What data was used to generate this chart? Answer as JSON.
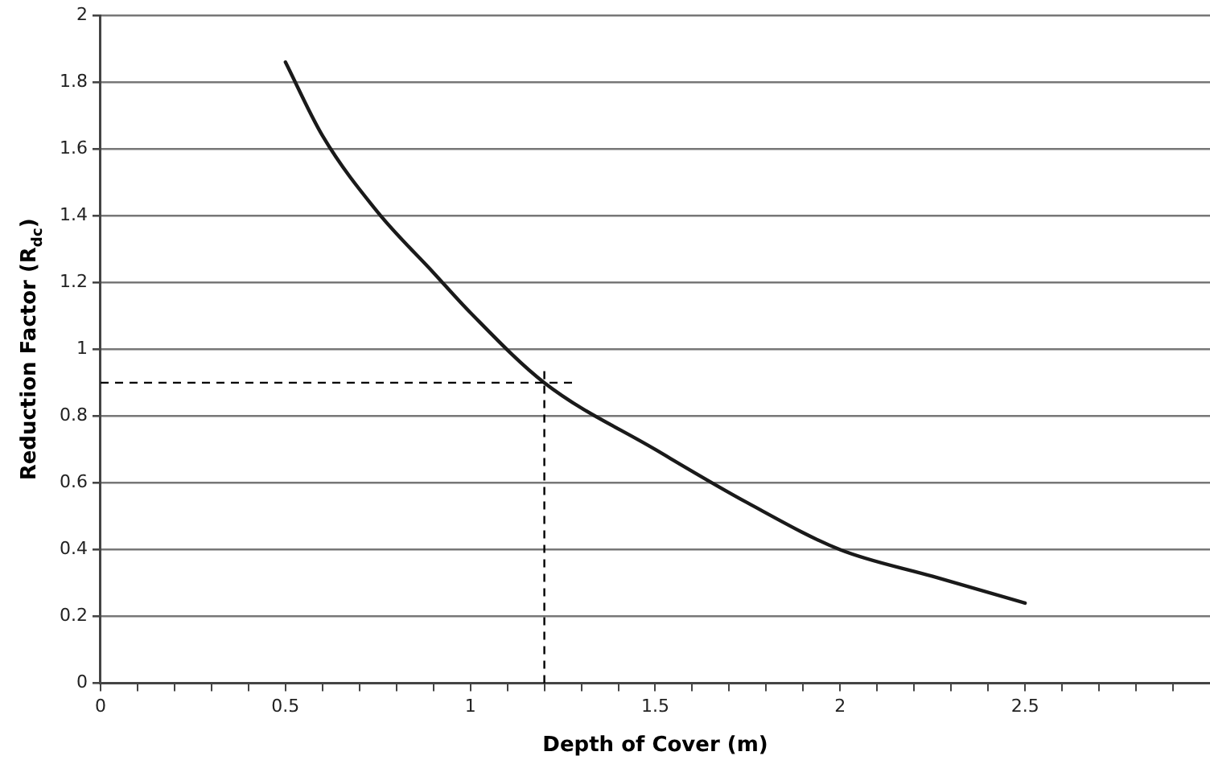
{
  "chart_data": {
    "type": "line",
    "xlabel": "Depth of Cover (m)",
    "ylabel": "Reduction Factor (R$_{dc}$)",
    "x": [
      0.5,
      0.6,
      0.75,
      0.9,
      1,
      1.2,
      1.5,
      1.75,
      2,
      2.25,
      2.5
    ],
    "series": [
      {
        "color": "#1a1a1a",
        "values": [
          1.86,
          1.64,
          1.41,
          1.23,
          1.11,
          0.9,
          0.7,
          0.54,
          0.4,
          0.32,
          0.24
        ]
      }
    ],
    "xlim": [
      0,
      3
    ],
    "xticks": [
      0,
      {
        "value": 0.1,
        "label": null
      },
      {
        "value": 0.2,
        "label": null
      },
      {
        "value": 0.3,
        "label": null
      },
      {
        "value": 0.4,
        "label": null
      },
      0.5,
      {
        "value": 0.6,
        "label": null
      },
      {
        "value": 0.7,
        "label": null
      },
      {
        "value": 0.8,
        "label": null
      },
      {
        "value": 0.9,
        "label": null
      },
      1,
      {
        "value": 1.1,
        "label": null
      },
      {
        "value": 1.2,
        "label": null
      },
      {
        "value": 1.3,
        "label": null
      },
      {
        "value": 1.4,
        "label": null
      },
      1.5,
      {
        "value": 1.6,
        "label": null
      },
      {
        "value": 1.7,
        "label": null
      },
      {
        "value": 1.8,
        "label": null
      },
      {
        "value": 1.9,
        "label": null
      },
      2,
      {
        "value": 2.1,
        "label": null
      },
      {
        "value": 2.2,
        "label": null
      },
      {
        "value": 2.3,
        "label": null
      },
      {
        "value": 2.4,
        "label": null
      },
      2.5,
      {
        "value": 2.6,
        "label": null
      },
      {
        "value": 2.7,
        "label": null
      },
      {
        "value": 2.8,
        "label": null
      },
      {
        "value": 2.9,
        "label": null
      }
    ],
    "ylim": [
      0,
      2
    ],
    "yticks": [
      0,
      0.2,
      0.4,
      0.6,
      0.8,
      1,
      1.2,
      1.4,
      1.6,
      1.8,
      2
    ],
    "grid": "y",
    "legend": false,
    "marker": "none",
    "line_style": "solid",
    "ref_lines": [
      {
        "axis": "y",
        "value": 0.9,
        "color": "#000000",
        "line_style": "dashed"
      },
      {
        "axis": "x",
        "value": 1.2,
        "color": "#000000",
        "line_style": "dashed"
      }
    ]
  }
}
